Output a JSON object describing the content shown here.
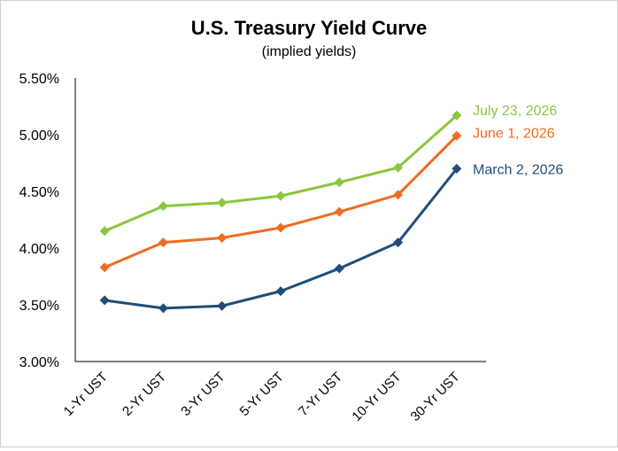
{
  "chart_data": {
    "type": "line",
    "title": "U.S. Treasury Yield Curve",
    "subtitle": "(implied yields)",
    "xlabel": "",
    "ylabel": "",
    "categories": [
      "1-Yr UST",
      "2-Yr UST",
      "3-Yr UST",
      "5-Yr UST",
      "7-Yr UST",
      "10-Yr UST",
      "30-Yr UST"
    ],
    "ylim": [
      3.0,
      5.5
    ],
    "yticks": [
      3.0,
      3.5,
      4.0,
      4.5,
      5.0,
      5.5
    ],
    "ytick_labels": [
      "3.00%",
      "3.50%",
      "4.00%",
      "4.50%",
      "5.00%",
      "5.50%"
    ],
    "grid": false,
    "legend": "inline labels at right end of each series",
    "marker": "diamond",
    "series": [
      {
        "name": "July 23, 2026",
        "color": "#8cc63f",
        "values": [
          4.15,
          4.37,
          4.4,
          4.46,
          4.58,
          4.71,
          5.17
        ]
      },
      {
        "name": "June 1, 2026",
        "color": "#f26b21",
        "values": [
          3.83,
          4.05,
          4.09,
          4.18,
          4.32,
          4.47,
          4.99
        ]
      },
      {
        "name": "March 2, 2026",
        "color": "#1f4e79",
        "values": [
          3.54,
          3.47,
          3.49,
          3.62,
          3.82,
          4.05,
          4.7
        ]
      }
    ]
  }
}
